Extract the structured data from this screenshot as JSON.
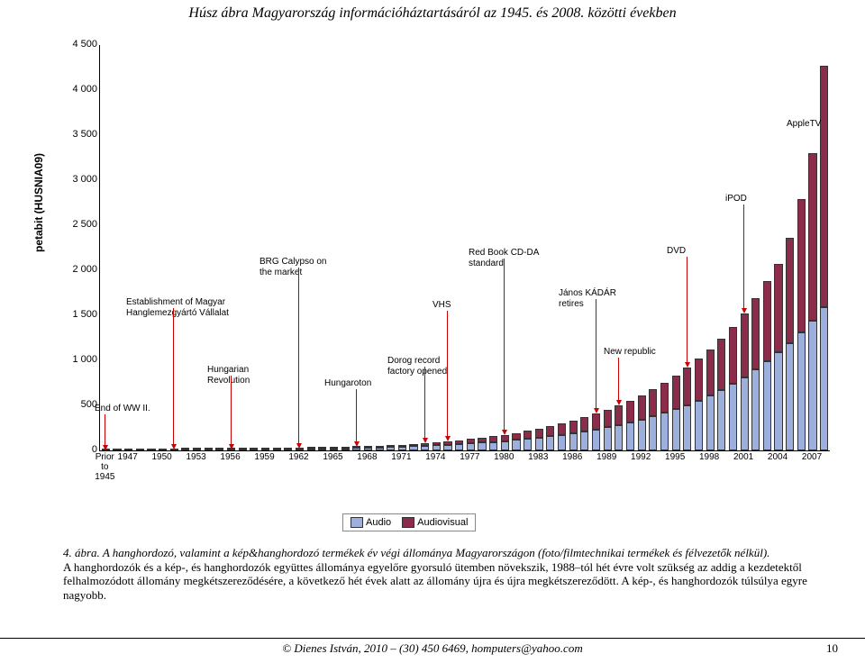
{
  "title": "Húsz ábra Magyarország információháztartásáról az 1945. és 2008. közötti években",
  "chart": {
    "type": "stacked-bar",
    "ylabel": "petabit (HUSNIA09)",
    "ylim": [
      0,
      4500
    ],
    "ytick_step": 500,
    "yticks": [
      "0",
      "500",
      "1 000",
      "1 500",
      "2 000",
      "2 500",
      "3 000",
      "3 500",
      "4 000",
      "4 500"
    ],
    "colors": {
      "audio": "#9db0dd",
      "audiovisual": "#8b2c4a",
      "axis": "#000000",
      "arrow": "#cc0000",
      "bg": "#ffffff"
    },
    "bar_width": 0.72,
    "categories": [
      "Prior to 1945",
      "1946",
      "1947",
      "1948",
      "1949",
      "1950",
      "1951",
      "1952",
      "1953",
      "1954",
      "1955",
      "1956",
      "1957",
      "1958",
      "1959",
      "1960",
      "1961",
      "1962",
      "1963",
      "1964",
      "1965",
      "1966",
      "1967",
      "1968",
      "1969",
      "1970",
      "1971",
      "1972",
      "1973",
      "1974",
      "1975",
      "1976",
      "1977",
      "1978",
      "1979",
      "1980",
      "1981",
      "1982",
      "1983",
      "1984",
      "1985",
      "1986",
      "1987",
      "1988",
      "1989",
      "1990",
      "1991",
      "1992",
      "1993",
      "1994",
      "1995",
      "1996",
      "1997",
      "1998",
      "1999",
      "2000",
      "2001",
      "2002",
      "2003",
      "2004",
      "2005",
      "2006",
      "2007",
      "2008"
    ],
    "xtick_labels": [
      "Prior to 1945",
      "1947",
      "1950",
      "1953",
      "1956",
      "1959",
      "1962",
      "1965",
      "1968",
      "1971",
      "1974",
      "1977",
      "1980",
      "1983",
      "1986",
      "1989",
      "1992",
      "1995",
      "1998",
      "2001",
      "2004",
      "2007"
    ],
    "xtick_indices": [
      0,
      2,
      5,
      8,
      11,
      14,
      17,
      20,
      23,
      26,
      29,
      32,
      35,
      38,
      41,
      44,
      47,
      50,
      53,
      56,
      59,
      62
    ],
    "audio": [
      3,
      3,
      3,
      4,
      4,
      5,
      5,
      6,
      6,
      7,
      8,
      8,
      9,
      10,
      11,
      12,
      13,
      15,
      17,
      19,
      21,
      24,
      27,
      30,
      33,
      37,
      41,
      46,
      51,
      57,
      63,
      70,
      78,
      86,
      95,
      105,
      116,
      128,
      142,
      157,
      173,
      191,
      211,
      233,
      257,
      283,
      312,
      343,
      378,
      416,
      458,
      504,
      555,
      611,
      672,
      740,
      815,
      897,
      987,
      1086,
      1195,
      1314,
      1445,
      1589
    ],
    "audiovisual": [
      1,
      1,
      1,
      1,
      2,
      2,
      2,
      2,
      3,
      3,
      3,
      4,
      4,
      5,
      5,
      6,
      7,
      8,
      9,
      10,
      11,
      13,
      14,
      16,
      18,
      21,
      24,
      27,
      30,
      34,
      39,
      44,
      49,
      55,
      62,
      70,
      79,
      88,
      99,
      111,
      124,
      139,
      156,
      174,
      195,
      218,
      243,
      271,
      302,
      336,
      374,
      416,
      462,
      513,
      569,
      631,
      709,
      796,
      893,
      987,
      1169,
      1472,
      1853,
      2683
    ],
    "annotations": [
      {
        "text": "End of WW II.",
        "cat_index": 0
      },
      {
        "text": "Establishment of Magyar Hanglemezgyártó Vállalat",
        "cat_index": 6
      },
      {
        "text": "Hungarian Revolution",
        "cat_index": 11
      },
      {
        "text": "BRG Calypso on the market",
        "cat_index": 17
      },
      {
        "text": "Hungaroton",
        "cat_index": 22
      },
      {
        "text": "Dorog record factory opened",
        "cat_index": 28
      },
      {
        "text": "VHS",
        "cat_index": 30
      },
      {
        "text": "Red Book CD-DA standard",
        "cat_index": 35
      },
      {
        "text": "János KÁDÁR retires",
        "cat_index": 43
      },
      {
        "text": "New republic",
        "cat_index": 45
      },
      {
        "text": "DVD",
        "cat_index": 51
      },
      {
        "text": "iPOD",
        "cat_index": 56
      },
      {
        "text": "AppleTV",
        "cat_index": 62
      }
    ],
    "annot_layout": [
      {
        "tx": -5,
        "ty": 398,
        "alen": 42
      },
      {
        "tx": 30,
        "ty": 280,
        "alen": 156,
        "w": 120
      },
      {
        "tx": 120,
        "ty": 355,
        "alen": 85,
        "w": 70
      },
      {
        "tx": 178,
        "ty": 235,
        "alen": 200,
        "w": 80
      },
      {
        "tx": 250,
        "ty": 370,
        "alen": 72
      },
      {
        "tx": 320,
        "ty": 345,
        "alen": 92,
        "w": 80
      },
      {
        "tx": 370,
        "ty": 283,
        "alen": 150
      },
      {
        "tx": 410,
        "ty": 225,
        "alen": 195,
        "w": 100
      },
      {
        "tx": 510,
        "ty": 270,
        "alen": 140,
        "w": 80
      },
      {
        "tx": 560,
        "ty": 335,
        "alen": 60,
        "w": 80
      },
      {
        "tx": 630,
        "ty": 223,
        "alen": 120
      },
      {
        "tx": 695,
        "ty": 165,
        "alen": 110
      },
      {
        "tx": 763,
        "ty": 82,
        "alen": -1
      }
    ]
  },
  "legend": {
    "audio": "Audio",
    "audiovisual": "Audiovisual"
  },
  "caption": {
    "fig_label": "4.  ábra.",
    "fig_title": "A hanghordozó, valamint a  kép&hanghordozó termékek év végi állománya Magyarországon (foto/filmtechnikai termékek és félvezetők nélkül).",
    "body": "A hanghordozók és a kép-, és hanghordozók együttes állománya egyelőre gyorsuló ütemben növekszik, 1988–tól hét évre volt szükség az addig a kezdetektől felhalmozódott állomány megkétszereződésére, a következő hét évek alatt az állomány újra és újra megkétszereződött. A kép-, és hanghordozók túlsúlya egyre nagyobb."
  },
  "footer": "© Dienes István, 2010 – (30) 450 6469, homputers@yahoo.com",
  "page_number": "10"
}
